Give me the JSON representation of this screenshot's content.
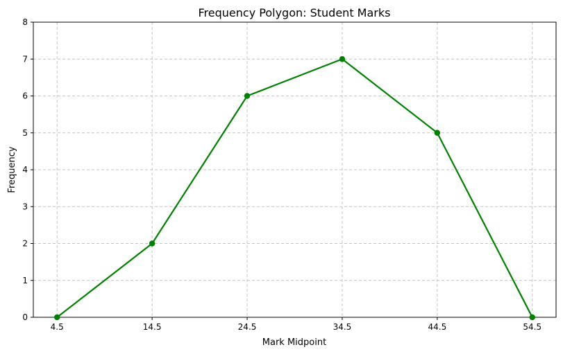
{
  "chart_data": {
    "type": "line",
    "title": "Frequency Polygon: Student Marks",
    "xlabel": "Mark Midpoint",
    "ylabel": "Frequency",
    "x": [
      4.5,
      14.5,
      24.5,
      34.5,
      44.5,
      54.5
    ],
    "x_tick_labels": [
      "4.5",
      "14.5",
      "24.5",
      "34.5",
      "44.5",
      "54.5"
    ],
    "series": [
      {
        "values": [
          0,
          2,
          6,
          7,
          5,
          0
        ],
        "color": "#008000",
        "marker": "circle"
      }
    ],
    "ylim": [
      0,
      8
    ],
    "y_ticks": [
      0,
      1,
      2,
      3,
      4,
      5,
      6,
      7,
      8
    ],
    "grid": true,
    "grid_style": "dashed",
    "legend": "none"
  }
}
